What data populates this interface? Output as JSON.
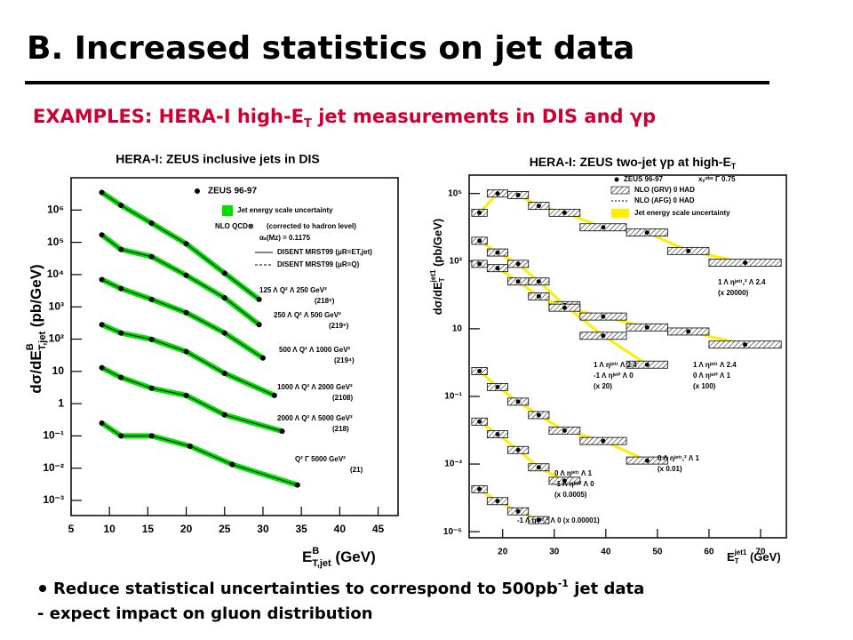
{
  "slide": {
    "title": "B. Increased statistics on jet data",
    "subtitle": [
      "EXAMPLES: HERA-I high-E",
      "T",
      " jet measurements in DIS and γp"
    ],
    "bullets": [
      [
        "Reduce statistical uncertainties to correspond to 500pb",
        "-1",
        " jet data"
      ],
      [
        "- expect impact on gluon distribution"
      ]
    ]
  },
  "chart_data": [
    {
      "type": "line",
      "log_y": true,
      "title": "HERA-I: ZEUS inclusive jets in DIS",
      "xlabel": [
        "E",
        "B",
        "T,jet",
        " (GeV)"
      ],
      "ylabel": [
        "dσ/dE",
        "B",
        "T,jet",
        " (pb/GeV)"
      ],
      "xlim": [
        5,
        47.6
      ],
      "xticks": [
        5,
        10,
        15,
        20,
        25,
        30,
        35,
        40,
        45
      ],
      "ylim": [
        0.00034,
        10000000
      ],
      "yticks": [
        {
          "value": 1000000,
          "label": "10⁶"
        },
        {
          "value": 100000,
          "label": "10⁵"
        },
        {
          "value": 10000,
          "label": "10⁴"
        },
        {
          "value": 1000,
          "label": "10³"
        },
        {
          "value": 100,
          "label": "10²"
        },
        10,
        1,
        {
          "value": 0.1,
          "label": "10⁻¹"
        },
        {
          "value": 0.01,
          "label": "10⁻²"
        },
        {
          "value": 0.001,
          "label": "10⁻³"
        }
      ],
      "point_color": "#000000",
      "band_color": "#00e000",
      "legend": [
        "ZEUS 96-97",
        "Jet energy scale uncertainty",
        "NLO QCD⊗",
        "(corrected to hadron level)",
        "αₛ(Mz) = 0.1175",
        "DISENT MRST99 (μR=ET,jet)",
        "DISENT MRST99 (μR=Q)"
      ],
      "series": [
        {
          "name": "125 Λ Q² Λ 250 GeV²",
          "note": "(218⁶)",
          "x": [
            9,
            11.5,
            15.5,
            20,
            25,
            29.5
          ],
          "values": [
            3500000,
            1400000,
            390000,
            90000,
            11000,
            1700
          ]
        },
        {
          "name": "250 Λ Q² Λ 500 GeV²",
          "note": "(219⁵)",
          "x": [
            9,
            11.5,
            15.5,
            20,
            25,
            29.5
          ],
          "values": [
            170000,
            60000,
            36000,
            9500,
            1900,
            280
          ]
        },
        {
          "name": "500 Λ Q² Λ 1000 GeV²",
          "note": "(219⁴)",
          "x": [
            9,
            11.5,
            15.5,
            20,
            25,
            30
          ],
          "values": [
            7000,
            3700,
            1700,
            660,
            155,
            26
          ]
        },
        {
          "name": "1000 Λ Q² Λ 2000 GeV²",
          "note": "(2108)",
          "x": [
            9,
            11.5,
            15.5,
            20,
            25,
            31.5
          ],
          "values": [
            280,
            155,
            98,
            41,
            8.7,
            1.8
          ]
        },
        {
          "name": "2000 Λ Q² Λ 5000 GeV²",
          "note": "(218)",
          "x": [
            9,
            11.5,
            15.5,
            20,
            25,
            32.5
          ],
          "values": [
            13,
            6.5,
            3,
            1.8,
            0.45,
            0.14
          ]
        },
        {
          "name": "Q² Γ 5000 GeV²",
          "note": "(21)",
          "x": [
            9,
            11.5,
            15.5,
            20.5,
            26,
            34.5
          ],
          "values": [
            0.25,
            0.1,
            0.1,
            0.048,
            0.013,
            0.003
          ]
        }
      ]
    },
    {
      "type": "histogram",
      "log_y": true,
      "title": [
        "HERA-I: ZEUS two-jet γp at high-E",
        "T"
      ],
      "xlabel": [
        "E",
        "T",
        "jet1",
        " (GeV)"
      ],
      "ylabel": [
        "dσ/dE",
        "T",
        "jet1",
        " (pb/GeV)"
      ],
      "xlim": [
        13.5,
        75
      ],
      "xticks": [
        20,
        30,
        40,
        50,
        60,
        70
      ],
      "ylim": [
        6.6e-06,
        350000
      ],
      "yticks": [
        {
          "value": 100000,
          "label": "10⁵"
        },
        {
          "value": 1000,
          "label": "10³"
        },
        10,
        {
          "value": 0.1,
          "label": "10⁻¹"
        },
        {
          "value": 0.001,
          "label": "10⁻³"
        },
        {
          "value": 1e-05,
          "label": "10⁻⁵"
        }
      ],
      "line_color": "#ffee00",
      "legend": [
        "ZEUS 96-97",
        "xᵧᵒᵇˢ Γ 0.75",
        "NLO (GRV) 0 HAD",
        "NLO (AFG) 0 HAD",
        "Jet energy scale uncertainty"
      ],
      "series": [
        {
          "name": [
            "1 Λ ηʲᵉᵗ¹,² Λ 2.4",
            "(x 20000)"
          ],
          "bins": [
            14,
            17,
            21,
            25,
            29,
            35,
            44,
            52,
            60,
            74
          ],
          "values": [
            27000,
            100000,
            90000,
            43000,
            27000,
            10000,
            7000,
            2000,
            900
          ]
        },
        {
          "name": [
            "1 Λ ηʲᵉᵗ¹ Λ 2.4",
            "-1 Λ ηʲᵉᵗ² Λ 0",
            "(x 20)"
          ],
          "bins": [
            14,
            17,
            21,
            25,
            29,
            35,
            44,
            52
          ],
          "values": [
            4000,
            1800,
            830,
            250,
            50,
            6.2,
            0.87
          ]
        },
        {
          "name": [
            "1 Λ ηʲᵉᵗ¹ Λ 2.4",
            "0 Λ ηʲᵉᵗ² Λ 1",
            "(x 100)"
          ],
          "bins": [
            14,
            17,
            21,
            25,
            29,
            35,
            44,
            52,
            60,
            74
          ],
          "values": [
            830,
            620,
            250,
            91,
            42,
            23,
            11,
            8.3,
            3.4
          ]
        },
        {
          "name": [
            "0 Λ ηʲᵉᵗ¹,² Λ 1",
            "(x 0.01)"
          ],
          "bins": [
            14,
            17,
            21,
            25,
            29,
            35,
            44,
            52
          ],
          "values": [
            0.56,
            0.19,
            0.07,
            0.028,
            0.0098,
            0.0048,
            0.00127
          ]
        },
        {
          "name": [
            "0 Λ ηʲᵉᵗ¹ Λ 1",
            "-1 Λ ηʲᵉᵗ² Λ 0",
            "(x 0.0005)"
          ],
          "bins": [
            14,
            17,
            21,
            25,
            29,
            35
          ],
          "values": [
            0.018,
            0.0076,
            0.0026,
            0.0008,
            0.00032
          ]
        },
        {
          "name": [
            "-1 Λ ηʲᵉᵗ¹,² Λ 0 (x 0.00001)"
          ],
          "bins": [
            14,
            17,
            21,
            25,
            29
          ],
          "values": [
            0.00018,
            8e-05,
            4e-05,
            2.2e-05
          ]
        }
      ]
    }
  ]
}
